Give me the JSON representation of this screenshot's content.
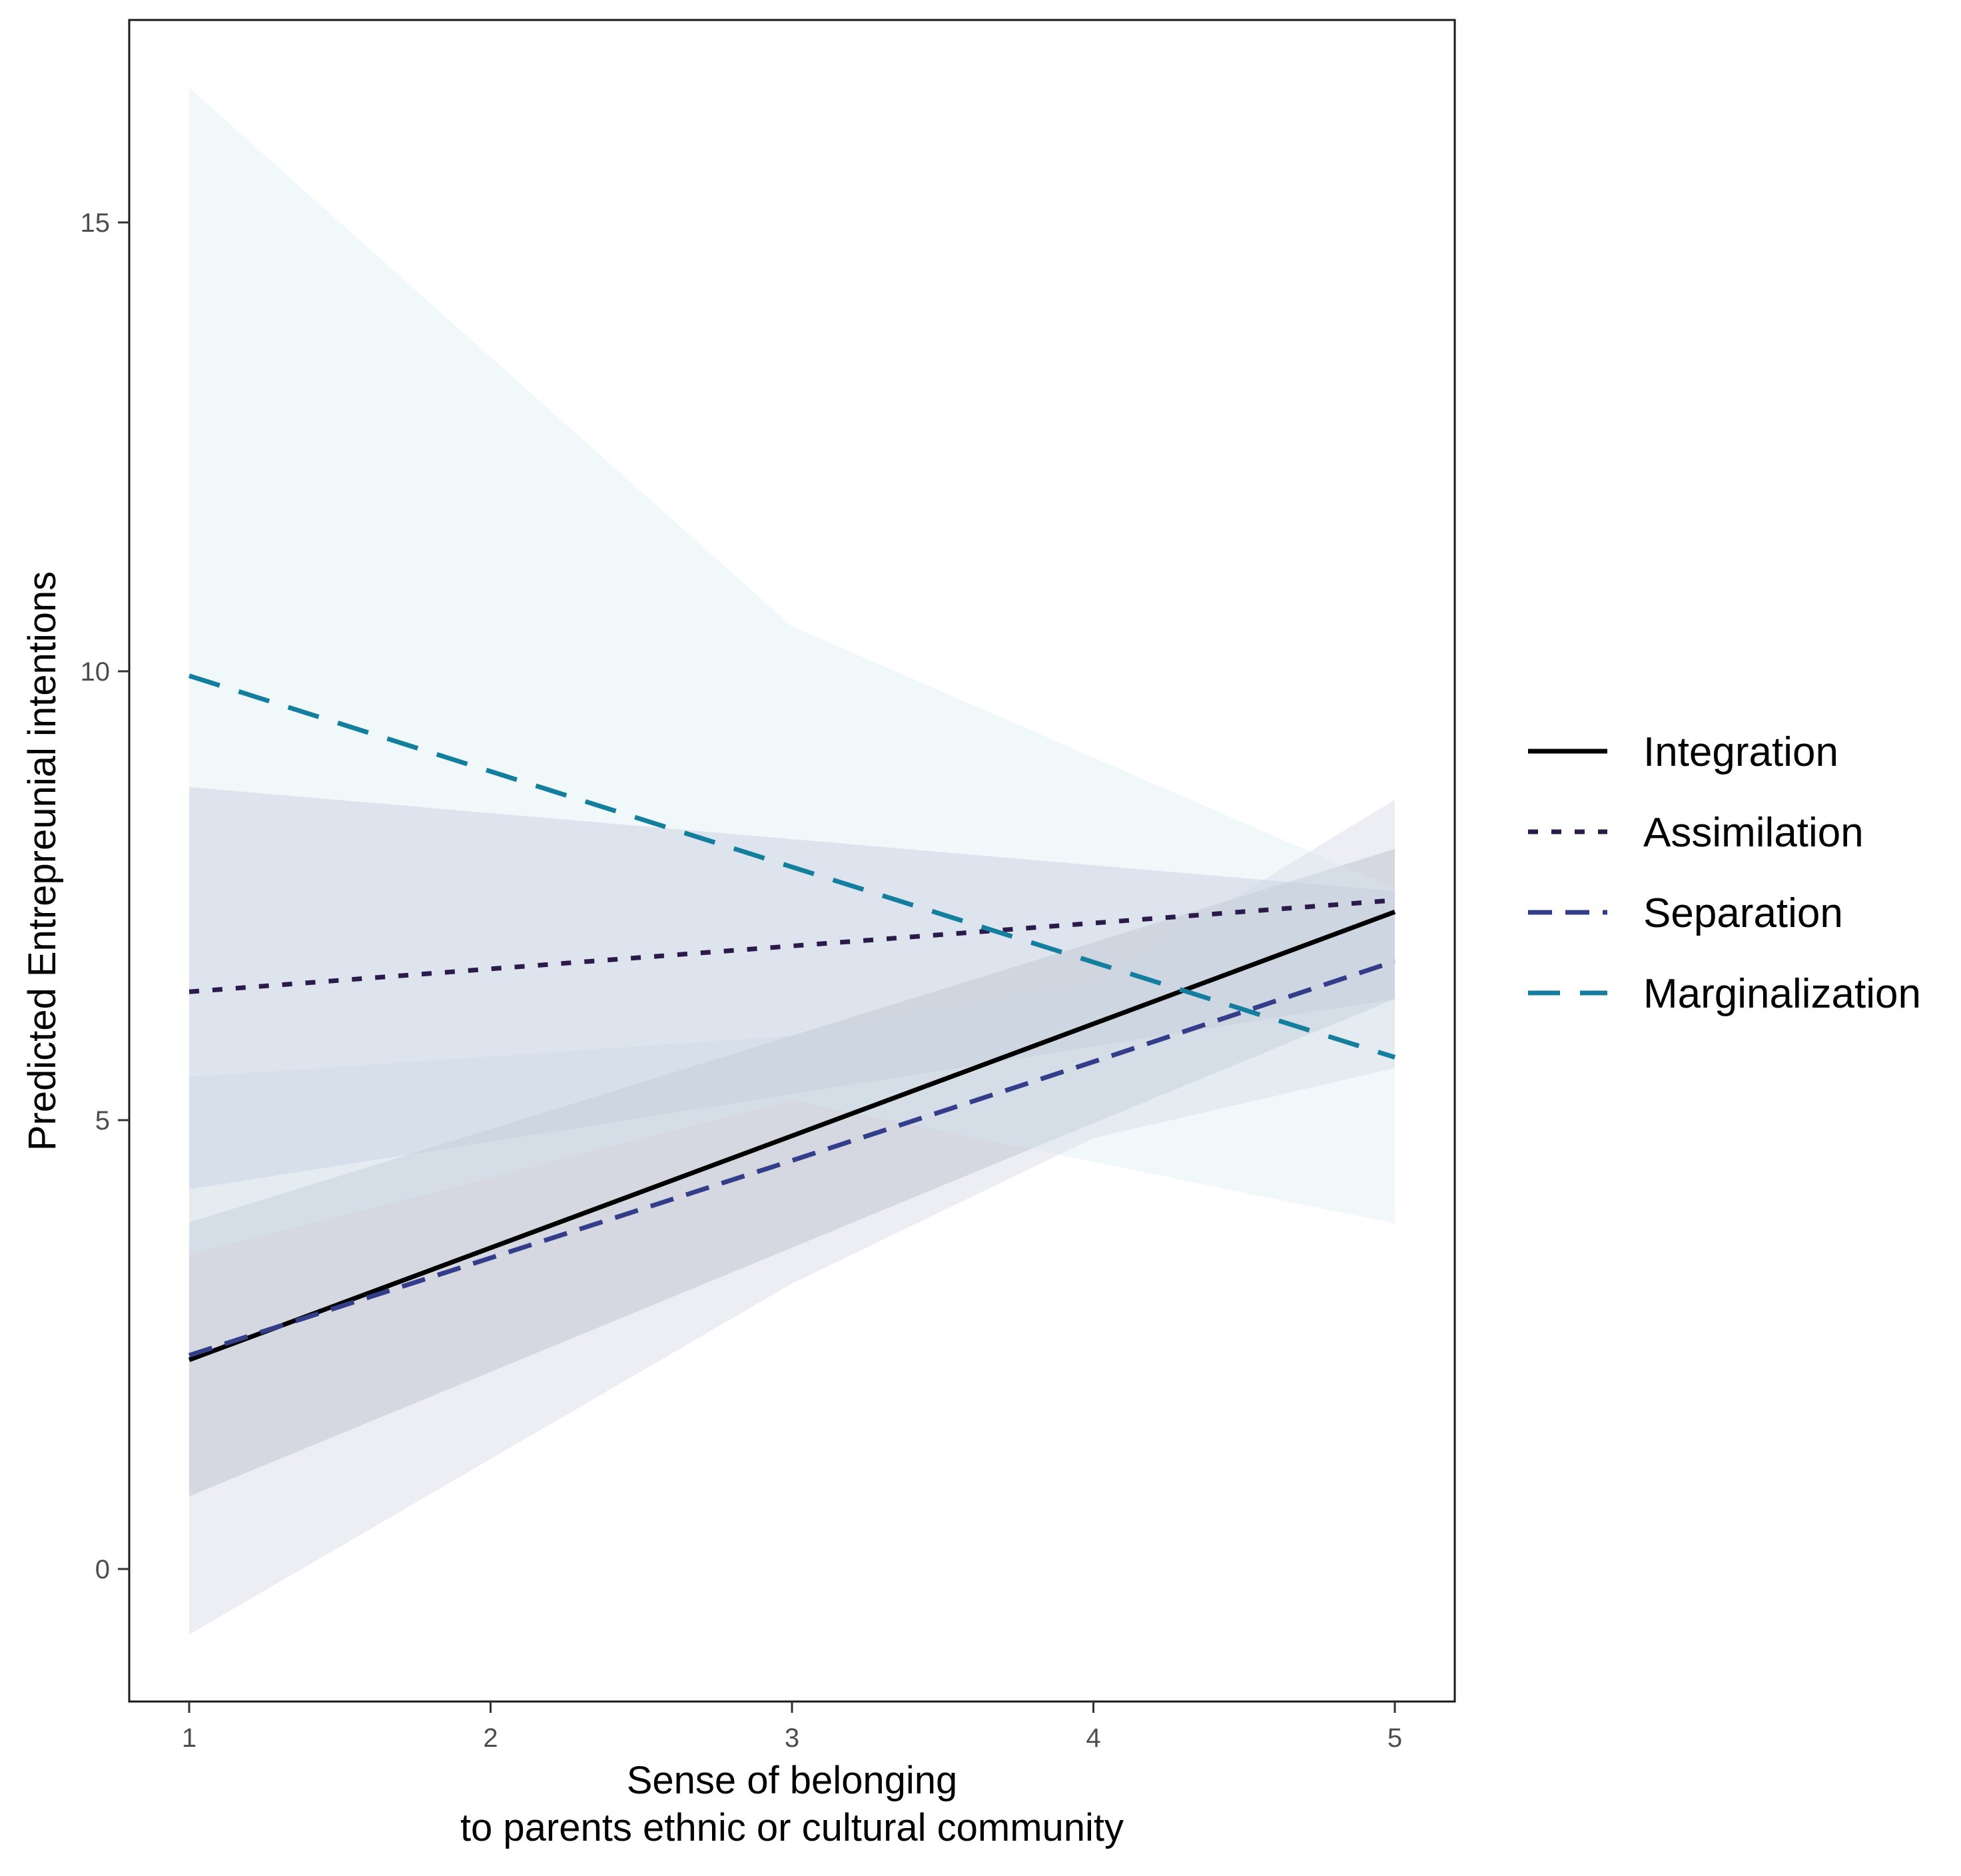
{
  "chart_data": {
    "type": "line",
    "title": "",
    "xlabel": [
      "Sense of belonging",
      "to parents ethnic or cultural community"
    ],
    "ylabel": "Predicted Entrepreunial intentions",
    "xlim": [
      0.8,
      5.2
    ],
    "ylim": [
      -1.55,
      16.55
    ],
    "x_ticks": [
      1,
      2,
      3,
      4,
      5
    ],
    "x_tick_labels": [
      "1",
      "2",
      "3",
      "4",
      "5"
    ],
    "y_ticks": [
      0,
      5,
      10,
      15
    ],
    "y_tick_labels": [
      "0",
      "5",
      "10",
      "15"
    ],
    "grid": false,
    "legend_position": "right",
    "x": [
      1,
      2,
      3,
      4,
      5
    ],
    "series": [
      {
        "name": "Integration",
        "dash": "solid",
        "color": "#000000",
        "band_color": "#9a9aaa",
        "x": [
          1,
          5
        ],
        "values": [
          2.33,
          7.32
        ],
        "ci_lower": [
          0.81,
          6.35
        ],
        "ci_upper": [
          3.86,
          8.02
        ]
      },
      {
        "name": "Assimilation",
        "dash": "dotted",
        "color": "#2b1a4a",
        "band_color": "#a6a8c6",
        "x": [
          1,
          5
        ],
        "values": [
          6.43,
          7.45
        ],
        "ci_lower": [
          4.23,
          6.35
        ],
        "ci_upper": [
          8.71,
          7.55
        ]
      },
      {
        "name": "Separation",
        "dash": "dashed",
        "color": "#343d8a",
        "band_color": "#c6cade",
        "x": [
          1,
          3,
          4,
          5
        ],
        "values": [
          2.38,
          4.55,
          5.65,
          6.77
        ],
        "ci_lower": [
          -0.73,
          3.18,
          4.8,
          5.58
        ],
        "ci_upper": [
          5.48,
          5.94,
          6.52,
          8.57
        ]
      },
      {
        "name": "Marginalization",
        "dash": "longdash",
        "color": "#147e9f",
        "band_color": "#d3eaf0",
        "x": [
          1,
          3,
          5
        ],
        "values": [
          9.95,
          7.82,
          5.7
        ],
        "ci_lower": [
          3.5,
          5.22,
          3.85
        ],
        "ci_upper": [
          16.5,
          10.5,
          7.58
        ]
      }
    ]
  }
}
